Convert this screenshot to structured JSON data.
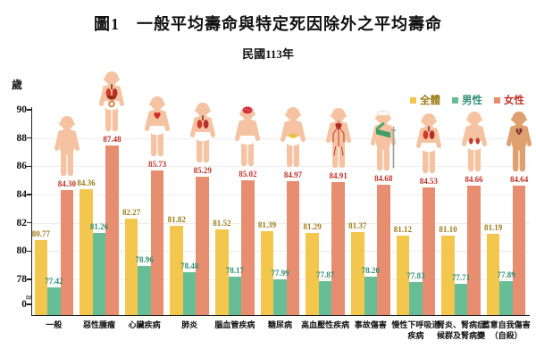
{
  "chart_data": {
    "type": "bar",
    "title": "圖1　一般平均壽命與特定死因除外之平均壽命",
    "subtitle": "民國113年",
    "ylabel": "歲",
    "y_ticks": [
      "90",
      "88",
      "86",
      "84",
      "82",
      "80",
      "78"
    ],
    "y_tick_values": [
      90,
      88,
      86,
      84,
      82,
      80,
      78
    ],
    "axis_break_label": "0",
    "ylim": [
      78,
      90
    ],
    "grid": true,
    "legend_position": "top-right",
    "categories": [
      {
        "lines": [
          "一般"
        ],
        "icon": "plain-body-icon"
      },
      {
        "lines": [
          "惡性腫瘤"
        ],
        "icon": "cancer-organs-icon"
      },
      {
        "lines": [
          "心臟疾病"
        ],
        "icon": "heart-icon"
      },
      {
        "lines": [
          "肺炎"
        ],
        "icon": "lungs-icon"
      },
      {
        "lines": [
          "腦血管疾病"
        ],
        "icon": "brain-icon"
      },
      {
        "lines": [
          "糖尿病"
        ],
        "icon": "pancreas-icon"
      },
      {
        "lines": [
          "高血壓性疾病"
        ],
        "icon": "circulatory-system-icon"
      },
      {
        "lines": [
          "事故傷害"
        ],
        "icon": "injury-crutch-icon"
      },
      {
        "lines": [
          "慢性下呼吸道",
          "疾病"
        ],
        "icon": "respiratory-tract-icon"
      },
      {
        "lines": [
          "腎炎、腎病症",
          "候群及腎病變"
        ],
        "icon": "kidneys-icon"
      },
      {
        "lines": [
          "蓄意自我傷害",
          "（自殺）"
        ],
        "icon": "broken-heart-icon"
      }
    ],
    "series": [
      {
        "name": "全體",
        "color": "#F3C74E",
        "label_color": "#9E7C16",
        "values": [
          "80.77",
          "84.36",
          "82.27",
          "81.82",
          "81.52",
          "81.39",
          "81.29",
          "81.37",
          "81.12",
          "81.10",
          "81.19"
        ]
      },
      {
        "name": "男性",
        "color": "#67BD96",
        "label_color": "#2E8F72",
        "values": [
          "77.42",
          "81.26",
          "78.96",
          "78.48",
          "78.17",
          "77.99",
          "77.87",
          "78.20",
          "77.83",
          "77.71",
          "77.89"
        ]
      },
      {
        "name": "女性",
        "color": "#E88E70",
        "label_color": "#C03227",
        "values": [
          "84.30",
          "87.48",
          "85.73",
          "85.29",
          "85.02",
          "84.97",
          "84.91",
          "84.68",
          "84.53",
          "84.66",
          "84.64"
        ]
      }
    ]
  }
}
